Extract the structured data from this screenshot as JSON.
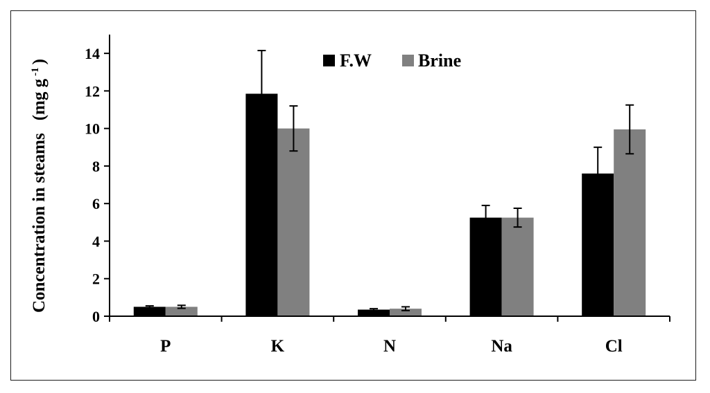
{
  "chart_data": {
    "type": "bar",
    "title": "",
    "xlabel": "",
    "ylabel": "Concentration in steams",
    "ylabel_unit": "(mg g",
    "ylabel_unit_sup": "-1",
    "ylabel_unit_close": ")",
    "categories": [
      "P",
      "K",
      "N",
      "Na",
      "Cl"
    ],
    "series": [
      {
        "name": "F.W",
        "color": "#000000",
        "values": [
          0.5,
          11.85,
          0.35,
          5.25,
          7.6
        ],
        "errors": [
          0.05,
          2.3,
          0.05,
          0.65,
          1.4
        ]
      },
      {
        "name": "Brine",
        "color": "#808080",
        "values": [
          0.5,
          10.0,
          0.4,
          5.25,
          9.95
        ],
        "errors": [
          0.08,
          1.2,
          0.1,
          0.5,
          1.3
        ]
      }
    ],
    "ylim": [
      0,
      15
    ],
    "yticks": [
      0,
      2,
      4,
      6,
      8,
      10,
      12,
      14
    ],
    "grid": false,
    "legend_position": "top-center"
  }
}
